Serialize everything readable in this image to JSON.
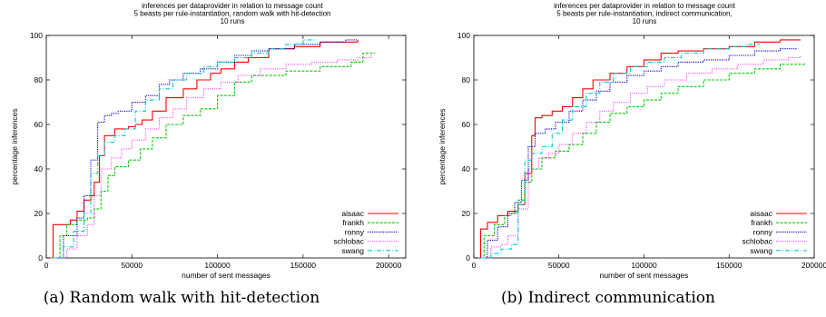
{
  "colors": {
    "aisaac": "#ff0000",
    "frankh": "#00cc00",
    "ronny": "#0000cc",
    "schlobac": "#ff00ff",
    "swang": "#00cccc"
  },
  "chart_data": [
    {
      "type": "line",
      "title_lines": [
        "inferences per dataprovider in relation to message count",
        "5 beasts per rule-instantiation, random walk with hit-detection",
        "10 runs"
      ],
      "xlabel": "number of sent messages",
      "ylabel": "percentage inferences",
      "xlim": [
        0,
        210000
      ],
      "ylim": [
        0,
        100
      ],
      "xticks": [
        0,
        50000,
        100000,
        150000,
        200000
      ],
      "yticks": [
        0,
        20,
        40,
        60,
        80,
        100
      ],
      "grid": false,
      "legend_position": "bottom-right",
      "caption": "(a) Random walk with hit-detection",
      "series": [
        {
          "name": "aisaac",
          "style": "solid",
          "x": [
            2000,
            4000,
            6000,
            12000,
            14000,
            18000,
            22000,
            26000,
            28000,
            31000,
            34000,
            40000,
            48000,
            52000,
            56000,
            62000,
            70000,
            80000,
            88000,
            96000,
            102000,
            110000,
            118000,
            130000,
            145000,
            160000,
            172000,
            182000
          ],
          "y": [
            0,
            15,
            15,
            15,
            17,
            21,
            26,
            28,
            34,
            46,
            55,
            58,
            59,
            60,
            62,
            66,
            72,
            76,
            80,
            83,
            85,
            88,
            90,
            94,
            95,
            97,
            97,
            98
          ]
        },
        {
          "name": "frankh",
          "style": "dashed",
          "x": [
            3000,
            8000,
            12000,
            18000,
            24000,
            28000,
            32000,
            36000,
            40000,
            48000,
            55000,
            62000,
            70000,
            80000,
            90000,
            100000,
            110000,
            120000,
            140000,
            160000,
            178000,
            185000,
            192000
          ],
          "y": [
            0,
            10,
            15,
            17,
            18,
            22,
            30,
            37,
            41,
            44,
            49,
            54,
            60,
            64,
            67,
            73,
            79,
            82,
            84,
            86,
            88,
            92,
            92
          ]
        },
        {
          "name": "ronny",
          "style": "dotted",
          "x": [
            4000,
            10000,
            18000,
            22000,
            26000,
            30000,
            34000,
            38000,
            42000,
            50000,
            58000,
            66000,
            72000,
            80000,
            90000,
            100000,
            110000,
            120000,
            130000,
            145000,
            160000,
            175000,
            182000
          ],
          "y": [
            0,
            10,
            18,
            28,
            44,
            61,
            64,
            65,
            66,
            70,
            73,
            78,
            80,
            83,
            85,
            88,
            91,
            93,
            94,
            96,
            97,
            98,
            98
          ]
        },
        {
          "name": "schlobac",
          "style": "dotted-fine",
          "x": [
            6000,
            12000,
            18000,
            24000,
            28000,
            32000,
            38000,
            44000,
            50000,
            58000,
            66000,
            74000,
            82000,
            92000,
            102000,
            112000,
            125000,
            140000,
            155000,
            170000,
            182000,
            190000
          ],
          "y": [
            0,
            4,
            10,
            15,
            28,
            40,
            45,
            49,
            53,
            58,
            63,
            67,
            72,
            76,
            79,
            82,
            85,
            87,
            88,
            89,
            90,
            91
          ]
        },
        {
          "name": "swang",
          "style": "dash-dot",
          "x": [
            4000,
            10000,
            16000,
            22000,
            26000,
            30000,
            34000,
            40000,
            46000,
            52000,
            58000,
            66000,
            74000,
            82000,
            92000,
            100000,
            110000,
            120000,
            130000,
            140000,
            150000,
            158000
          ],
          "y": [
            0,
            5,
            12,
            20,
            38,
            46,
            52,
            55,
            58,
            66,
            71,
            76,
            80,
            83,
            86,
            88,
            90,
            92,
            94,
            96,
            98,
            98
          ]
        }
      ]
    },
    {
      "type": "line",
      "title_lines": [
        "inferences per dataprovider in relation to message count",
        "5 beasts per rule-instantiation, indirect communication,",
        "10 runs"
      ],
      "xlabel": "number of sent messages",
      "ylabel": "percentage inferences",
      "xlim": [
        0,
        200000
      ],
      "ylim": [
        0,
        100
      ],
      "xticks": [
        0,
        50000,
        100000,
        150000,
        200000
      ],
      "yticks": [
        0,
        20,
        40,
        60,
        80,
        100
      ],
      "grid": false,
      "legend_position": "bottom-right",
      "caption": "(b) Indirect communication",
      "series": [
        {
          "name": "aisaac",
          "style": "solid",
          "x": [
            2000,
            4000,
            8000,
            14000,
            20000,
            26000,
            30000,
            34000,
            36000,
            40000,
            46000,
            52000,
            58000,
            64000,
            70000,
            80000,
            90000,
            100000,
            110000,
            120000,
            135000,
            150000,
            165000,
            180000,
            192000
          ],
          "y": [
            0,
            13,
            16,
            19,
            21,
            24,
            38,
            55,
            63,
            64,
            66,
            68,
            72,
            76,
            80,
            83,
            86,
            89,
            92,
            93,
            94,
            95,
            97,
            98,
            98
          ]
        },
        {
          "name": "frankh",
          "style": "dashed",
          "x": [
            2000,
            6000,
            12000,
            18000,
            22000,
            26000,
            30000,
            34000,
            40000,
            48000,
            56000,
            64000,
            72000,
            80000,
            90000,
            100000,
            110000,
            120000,
            135000,
            150000,
            165000,
            180000,
            195000
          ],
          "y": [
            0,
            10,
            15,
            19,
            20,
            26,
            34,
            40,
            45,
            48,
            51,
            56,
            61,
            65,
            68,
            71,
            74,
            77,
            80,
            83,
            85,
            87,
            87
          ]
        },
        {
          "name": "ronny",
          "style": "dotted",
          "x": [
            2000,
            8000,
            14000,
            20000,
            24000,
            28000,
            32000,
            36000,
            42000,
            48000,
            56000,
            64000,
            72000,
            80000,
            90000,
            100000,
            110000,
            120000,
            135000,
            150000,
            165000,
            180000,
            190000
          ],
          "y": [
            0,
            8,
            14,
            20,
            25,
            35,
            50,
            56,
            58,
            61,
            66,
            71,
            75,
            79,
            82,
            84,
            86,
            88,
            89,
            91,
            93,
            94,
            94
          ]
        },
        {
          "name": "schlobac",
          "style": "dotted-fine",
          "x": [
            4000,
            10000,
            16000,
            20000,
            26000,
            32000,
            38000,
            44000,
            50000,
            58000,
            66000,
            74000,
            82000,
            92000,
            102000,
            112000,
            125000,
            140000,
            155000,
            170000,
            185000,
            192000
          ],
          "y": [
            0,
            5,
            6,
            10,
            22,
            40,
            45,
            47,
            51,
            56,
            61,
            66,
            70,
            74,
            77,
            80,
            83,
            85,
            87,
            89,
            90,
            91
          ]
        },
        {
          "name": "swang",
          "style": "dash-dot",
          "x": [
            4000,
            10000,
            16000,
            22000,
            26000,
            30000,
            34000,
            40000,
            46000,
            52000,
            58000,
            66000,
            74000,
            82000,
            92000,
            102000,
            112000,
            122000,
            135000,
            150000,
            160000,
            168000
          ],
          "y": [
            0,
            2,
            4,
            6,
            24,
            44,
            47,
            50,
            56,
            62,
            68,
            74,
            79,
            83,
            86,
            88,
            90,
            92,
            94,
            95,
            96,
            96
          ]
        }
      ]
    }
  ]
}
